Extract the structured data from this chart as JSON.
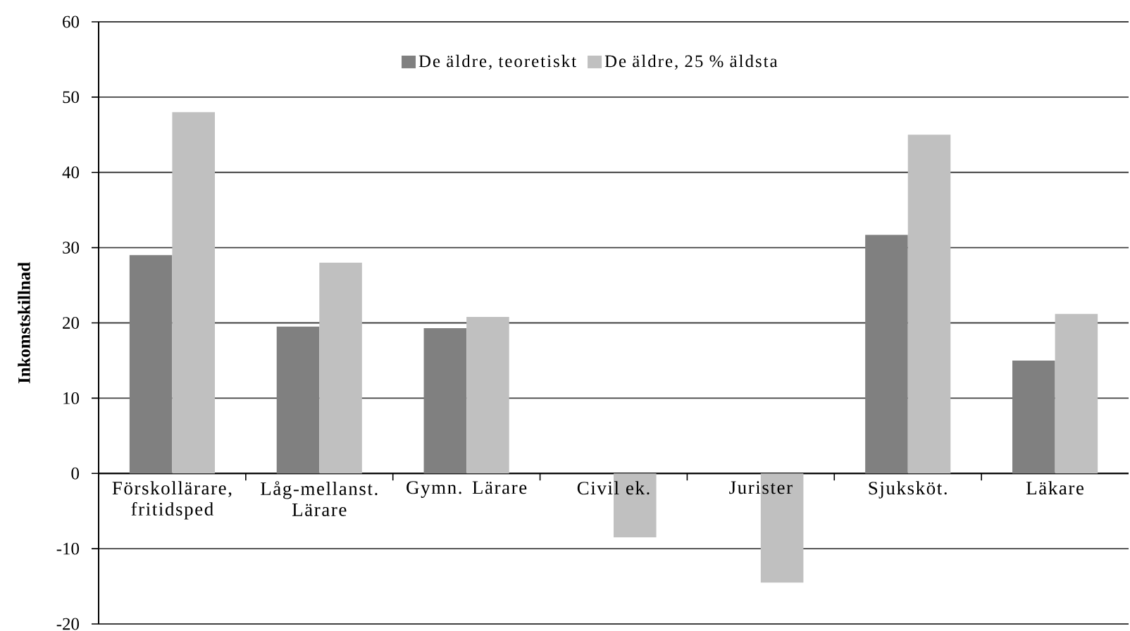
{
  "chart_data": {
    "type": "bar",
    "ylabel": "Inkomstskillnad",
    "categories": [
      "Förskollärare, fritidsped",
      "Låg-mellanst. Lärare",
      "Gymn. Lärare",
      "Civil ek.",
      "Jurister",
      "Sjuksköt.",
      "Läkare"
    ],
    "series": [
      {
        "name": "De äldre, teoretiskt",
        "color": "#808080",
        "values": [
          29,
          19.5,
          19.3,
          null,
          null,
          31.7,
          15
        ]
      },
      {
        "name": "De äldre, 25 % äldsta",
        "color": "#c0c0c0",
        "values": [
          48,
          28,
          20.8,
          -8.5,
          -14.5,
          45,
          21.2
        ]
      }
    ],
    "ylim": [
      -20,
      60
    ],
    "yticks": [
      -20,
      -10,
      0,
      10,
      20,
      30,
      40,
      50,
      60
    ],
    "grid": "y",
    "legend": "top"
  }
}
